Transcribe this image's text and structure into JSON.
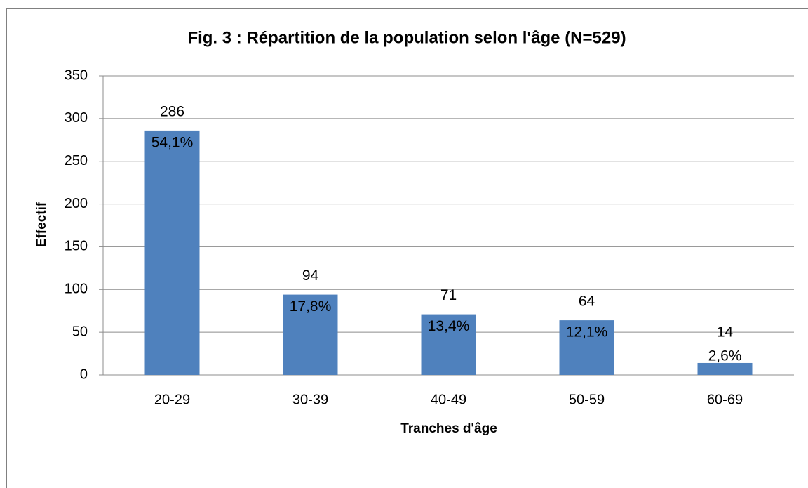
{
  "chart_data": {
    "type": "bar",
    "title": "Fig. 3 : Répartition de la population selon l'âge (N=529)",
    "xlabel": "Tranches d'âge",
    "ylabel": "Effectif",
    "categories": [
      "20-29",
      "30-39",
      "40-49",
      "50-59",
      "60-69"
    ],
    "values": [
      286,
      94,
      71,
      64,
      14
    ],
    "percent_labels": [
      "54,1%",
      "17,8%",
      "13,4%",
      "12,1%",
      "2,6%"
    ],
    "color": "#4f81bd",
    "ylim": [
      0,
      350
    ],
    "yticks": [
      0,
      50,
      100,
      150,
      200,
      250,
      300,
      350
    ],
    "grid": true
  }
}
